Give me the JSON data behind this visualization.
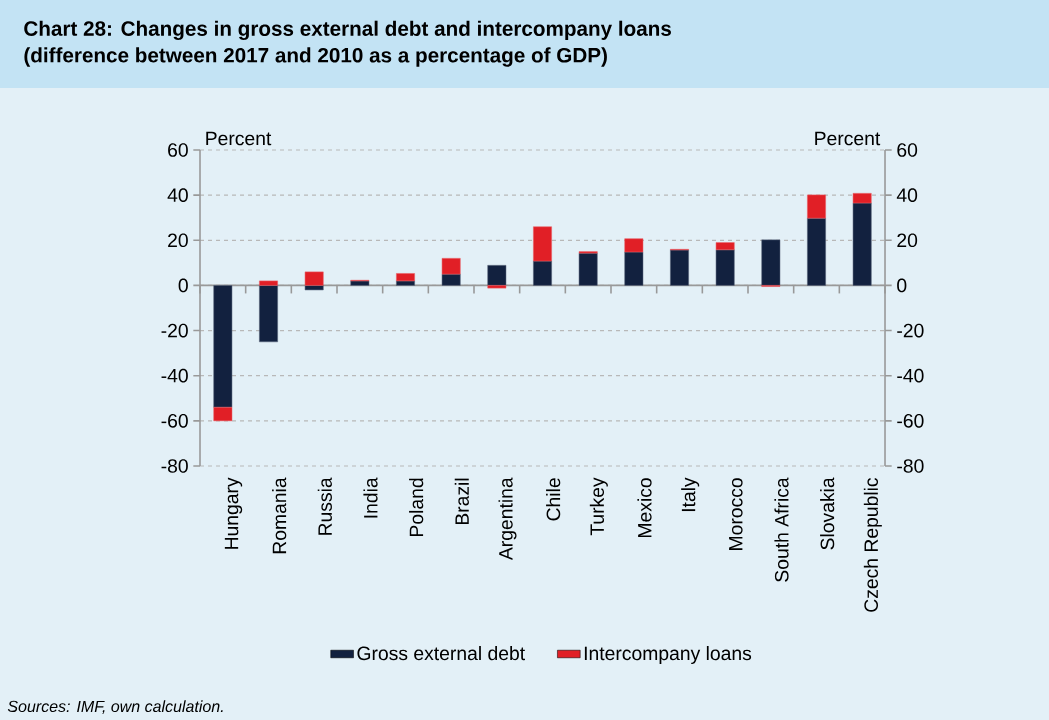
{
  "chart_data": {
    "type": "bar",
    "title": "Chart 28: Changes in gross external debt and intercompany loans",
    "subtitle": "(difference between 2017 and 2010 as a percentage of GDP)",
    "ylabel": "Percent",
    "y2label": "Percent",
    "categories": [
      "Hungary",
      "Romania",
      "Russia",
      "India",
      "Poland",
      "Brazil",
      "Argentina",
      "Chile",
      "Turkey",
      "Mexico",
      "Italy",
      "Morocco",
      "South Africa",
      "Slovakia",
      "Czech Republic"
    ],
    "stacked": true,
    "series": [
      {
        "name": "Gross external debt",
        "color": "#12213f",
        "values": [
          -54,
          -25,
          -2,
          2,
          2,
          5,
          8.9,
          10.8,
          14.3,
          14.8,
          15.7,
          15.8,
          20.2,
          29.8,
          36.5
        ]
      },
      {
        "name": "Intercompany loans",
        "color": "#e11f26",
        "values": [
          -6,
          2,
          6,
          0.3,
          3.3,
          7,
          -1.2,
          15.2,
          0.7,
          5.9,
          0.3,
          3.2,
          -0.5,
          10.3,
          4.3
        ]
      }
    ],
    "ylim": [
      -80,
      60
    ],
    "yticks": [
      -80,
      -60,
      -40,
      -20,
      0,
      20,
      40,
      60
    ],
    "y2lim": [
      -80,
      60
    ],
    "y2ticks": [
      -80,
      -60,
      -40,
      -20,
      0,
      20,
      40,
      60
    ],
    "grid": "y",
    "legend": "bottom",
    "annotations": [
      "Sources: IMF, own calculation."
    ]
  }
}
